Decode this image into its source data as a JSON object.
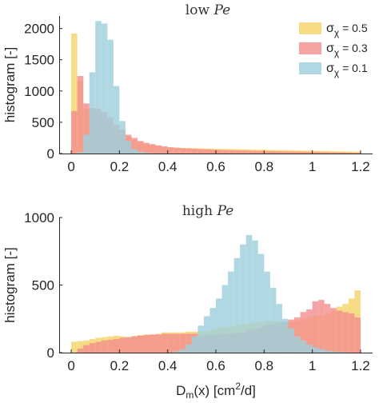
{
  "chart_data": [
    {
      "type": "histogram",
      "title_prefix": "low",
      "title_symbol": "Pe",
      "ylabel": "histogram [-]",
      "xlabel": "",
      "xlim": [
        -0.05,
        1.25
      ],
      "ylim": [
        0,
        2200
      ],
      "xticks": [
        "0",
        "0.2",
        "0.4",
        "0.6",
        "0.8",
        "1",
        "1.2"
      ],
      "yticks": [
        "0",
        "500",
        "1000",
        "1500",
        "2000"
      ],
      "bin_start": 0.0,
      "bin_width": 0.025,
      "legend": {
        "placement": "top-right",
        "entries": [
          {
            "symbol": "σ",
            "sub": "χ",
            "text": " = 0.5"
          },
          {
            "symbol": "σ",
            "sub": "χ",
            "text": " = 0.3"
          },
          {
            "symbol": "σ",
            "sub": "χ",
            "text": " = 0.1"
          }
        ]
      },
      "series": [
        {
          "name": "σχ = 0.5",
          "color": "#f5d36a",
          "values": [
            1920,
            1160,
            720,
            650,
            560,
            500,
            420,
            370,
            320,
            270,
            220,
            190,
            160,
            140,
            120,
            110,
            100,
            95,
            90,
            88,
            85,
            82,
            80,
            78,
            76,
            74,
            72,
            70,
            68,
            66,
            64,
            62,
            60,
            58,
            56,
            54,
            52,
            50,
            48,
            46,
            44,
            42,
            40,
            38,
            36,
            34,
            32,
            30
          ]
        },
        {
          "name": "σχ = 0.3",
          "color": "#f48f8f",
          "values": [
            680,
            1240,
            800,
            730,
            720,
            660,
            580,
            460,
            380,
            300,
            250,
            200,
            170,
            150,
            130,
            115,
            100,
            92,
            85,
            80,
            75,
            70,
            65,
            62,
            58,
            55,
            52,
            50,
            48,
            45,
            42,
            40,
            38,
            36,
            34,
            32,
            30,
            28,
            26,
            25,
            24,
            22,
            20,
            18,
            16,
            14,
            12,
            10
          ]
        },
        {
          "name": "σχ = 0.1",
          "color": "#9fd0dc",
          "values": [
            0,
            20,
            300,
            1300,
            2120,
            2080,
            1820,
            1080,
            520,
            200,
            70,
            25,
            10,
            5,
            3,
            2,
            0,
            0,
            0,
            0,
            0,
            0,
            0,
            0,
            0,
            0,
            0,
            0,
            0,
            0,
            0,
            0,
            0,
            0,
            0,
            0,
            0,
            0,
            0,
            0,
            0,
            0,
            0,
            0,
            0,
            0,
            0,
            0
          ]
        }
      ]
    },
    {
      "type": "histogram",
      "title_prefix": "high",
      "title_symbol": "Pe",
      "ylabel": "histogram [-]",
      "xlabel": "D",
      "xlabel_sub": "m",
      "xlabel_mid": "(x) [cm",
      "xlabel_sup": "2",
      "xlabel_end": "/d]",
      "xlim": [
        -0.05,
        1.25
      ],
      "ylim": [
        0,
        1000
      ],
      "xticks": [
        "0",
        "0.2",
        "0.4",
        "0.6",
        "0.8",
        "1",
        "1.2"
      ],
      "yticks": [
        "0",
        "500",
        "1000"
      ],
      "bin_start": 0.0,
      "bin_width": 0.025,
      "series": [
        {
          "name": "σχ = 0.5",
          "color": "#f5d36a",
          "values": [
            80,
            85,
            90,
            100,
            110,
            115,
            120,
            125,
            120,
            115,
            125,
            130,
            135,
            130,
            140,
            150,
            150,
            150,
            150,
            155,
            155,
            155,
            160,
            175,
            180,
            185,
            190,
            200,
            210,
            215,
            225,
            225,
            230,
            230,
            230,
            225,
            230,
            235,
            250,
            260,
            275,
            275,
            285,
            310,
            340,
            360,
            400,
            460
          ]
        },
        {
          "name": "σχ = 0.3",
          "color": "#f48f8f",
          "values": [
            0,
            30,
            55,
            70,
            80,
            90,
            95,
            100,
            110,
            115,
            120,
            125,
            130,
            135,
            135,
            140,
            140,
            140,
            140,
            140,
            140,
            120,
            130,
            130,
            135,
            140,
            140,
            145,
            150,
            165,
            170,
            185,
            205,
            210,
            220,
            230,
            245,
            260,
            300,
            320,
            380,
            390,
            360,
            330,
            310,
            300,
            290,
            260
          ]
        },
        {
          "name": "σχ = 0.1",
          "color": "#9fd0dc",
          "values": [
            0,
            0,
            0,
            0,
            0,
            0,
            0,
            0,
            0,
            0,
            0,
            0,
            0,
            0,
            0,
            0,
            0,
            10,
            25,
            60,
            120,
            200,
            270,
            330,
            400,
            500,
            600,
            700,
            800,
            870,
            830,
            730,
            600,
            480,
            360,
            250,
            180,
            120,
            90,
            60,
            40,
            25,
            15,
            10,
            5,
            3,
            0,
            0
          ]
        }
      ]
    }
  ]
}
